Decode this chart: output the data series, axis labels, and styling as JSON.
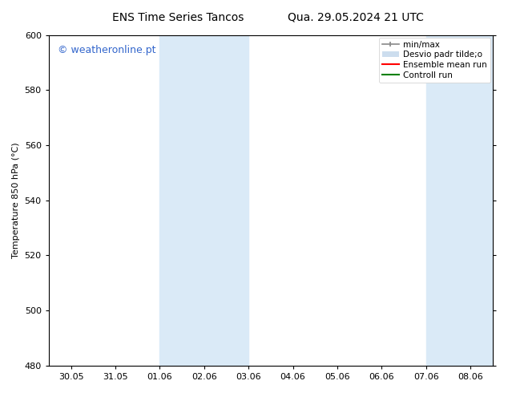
{
  "title_left": "ENS Time Series Tancos",
  "title_right": "Qua. 29.05.2024 21 UTC",
  "ylabel": "Temperature 850 hPa (°C)",
  "ylim": [
    480,
    600
  ],
  "yticks": [
    480,
    500,
    520,
    540,
    560,
    580,
    600
  ],
  "xtick_labels": [
    "30.05",
    "31.05",
    "01.06",
    "02.06",
    "03.06",
    "04.06",
    "05.06",
    "06.06",
    "07.06",
    "08.06"
  ],
  "shaded_regions": [
    {
      "xstart": 2,
      "xend": 4,
      "color": "#daeaf7"
    },
    {
      "xstart": 8,
      "xend": 9.5,
      "color": "#daeaf7"
    }
  ],
  "watermark_text": "© weatheronline.pt",
  "watermark_color": "#3366cc",
  "background_color": "#ffffff",
  "plot_bg_color": "#ffffff",
  "legend_labels": [
    "min/max",
    "Desvio padr tilde;o",
    "Ensemble mean run",
    "Controll run"
  ],
  "legend_colors_line": [
    "#888888",
    "#ccddee",
    "red",
    "green"
  ],
  "spine_color": "#000000",
  "font_size": 8,
  "title_font_size": 10,
  "watermark_font_size": 9
}
